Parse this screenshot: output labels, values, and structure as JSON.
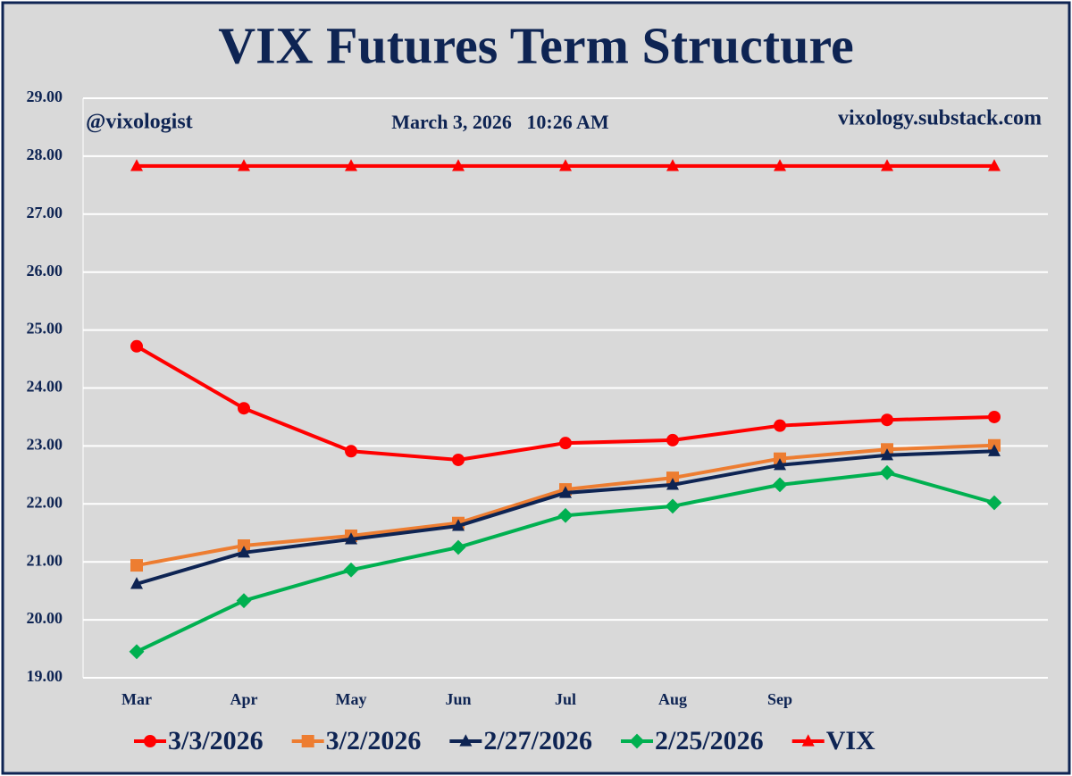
{
  "chart_data": {
    "type": "line",
    "title": "VIX Futures Term Structure",
    "annotations": [
      "@vixologist",
      "March 3, 2026   10:26 AM",
      "vixology.substack.com"
    ],
    "categories": [
      "Mar",
      "Apr",
      "May",
      "Jun",
      "Jul",
      "Aug",
      "Sep",
      null,
      null
    ],
    "ylim": [
      19,
      29
    ],
    "yticks": [
      {
        "value": 19,
        "label": "19.00"
      },
      {
        "value": 20,
        "label": "20.00"
      },
      {
        "value": 21,
        "label": "21.00"
      },
      {
        "value": 22,
        "label": "22.00"
      },
      {
        "value": 23,
        "label": "23.00"
      },
      {
        "value": 24,
        "label": "24.00"
      },
      {
        "value": 25,
        "label": "25.00"
      },
      {
        "value": 26,
        "label": "26.00"
      },
      {
        "value": 27,
        "label": "27.00"
      },
      {
        "value": 28,
        "label": "28.00"
      },
      {
        "value": 29,
        "label": "29.00"
      }
    ],
    "grid": true,
    "legend": "bottom",
    "series": [
      {
        "name": "3/3/2026",
        "color": "#ff0000",
        "marker": "circle",
        "values": [
          24.72,
          23.65,
          22.91,
          22.76,
          23.05,
          23.1,
          23.35,
          23.45,
          23.5
        ]
      },
      {
        "name": "3/2/2026",
        "color": "#ed7d31",
        "marker": "square",
        "values": [
          20.94,
          21.28,
          21.45,
          21.67,
          22.25,
          22.45,
          22.78,
          22.94,
          23.01
        ]
      },
      {
        "name": "2/27/2026",
        "color": "#0e2453",
        "marker": "triangle",
        "values": [
          20.62,
          21.16,
          21.39,
          21.62,
          22.19,
          22.33,
          22.67,
          22.84,
          22.91
        ]
      },
      {
        "name": "2/25/2026",
        "color": "#00b050",
        "marker": "diamond",
        "values": [
          19.45,
          20.33,
          20.86,
          21.25,
          21.8,
          21.96,
          22.33,
          22.54,
          22.02
        ]
      },
      {
        "name": "VIX",
        "color": "#ff0000",
        "marker": "triangle",
        "values": [
          27.83,
          27.83,
          27.83,
          27.83,
          27.83,
          27.83,
          27.83,
          27.83,
          27.83
        ]
      }
    ]
  }
}
